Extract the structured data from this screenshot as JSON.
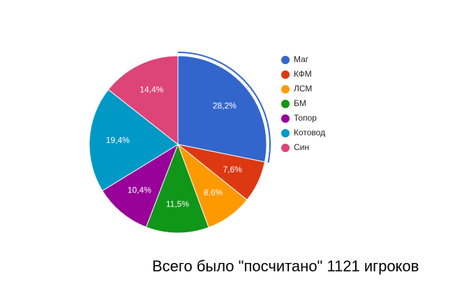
{
  "chart_data": {
    "type": "pie",
    "categories": [
      "Маг",
      "КФМ",
      "ЛСМ",
      "БМ",
      "Топор",
      "Котовод",
      "Син"
    ],
    "values": [
      28.2,
      7.6,
      8.6,
      11.5,
      10.4,
      19.4,
      14.4
    ],
    "value_labels": [
      "28,2%",
      "7,6%",
      "8,6%",
      "11,5%",
      "10,4%",
      "19,4%",
      "14,4%"
    ],
    "colors": [
      "#3366cc",
      "#dc3912",
      "#ff9900",
      "#109618",
      "#990099",
      "#0099c6",
      "#dd4477"
    ],
    "legend": "right",
    "annotation": "Всего было \"посчитано\" 1121 игроков"
  }
}
